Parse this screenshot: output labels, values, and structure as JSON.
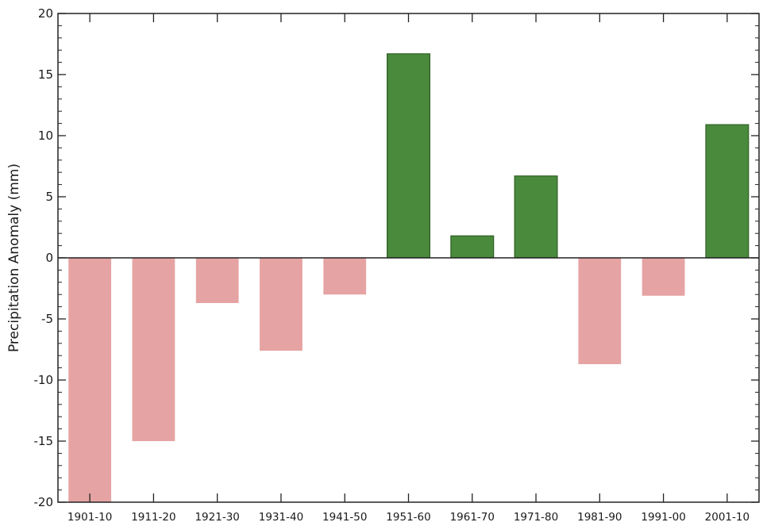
{
  "chart_data": {
    "type": "bar",
    "title": "",
    "xlabel": "",
    "ylabel": "Precipitation Anomaly (mm)",
    "ylim": [
      -20,
      20
    ],
    "yticks": [
      20,
      15,
      10,
      5,
      0,
      -5,
      -10,
      -15,
      -20
    ],
    "yticks_labels": [
      "20",
      "15",
      "10",
      "5",
      "0",
      "-5",
      "-10",
      "-15",
      "-20"
    ],
    "categories": [
      "1901-10",
      "1911-20",
      "1921-30",
      "1931-40",
      "1941-50",
      "1951-60",
      "1961-70",
      "1971-80",
      "1981-90",
      "1991-00",
      "2001-10"
    ],
    "values": [
      -20.0,
      -15.0,
      -3.7,
      -7.6,
      -3.0,
      16.7,
      1.8,
      6.7,
      -8.7,
      -3.1,
      10.9
    ],
    "grid": false,
    "colors": {
      "positive": "#4a8a3c",
      "negative": "#e6a3a3",
      "positive_stroke": "#2f5f25"
    }
  }
}
